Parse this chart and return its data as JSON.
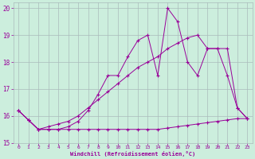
{
  "xlabel": "Windchill (Refroidissement éolien,°C)",
  "bg_color": "#cceedd",
  "grid_color": "#aabbbb",
  "line_color": "#990099",
  "xlim": [
    -0.5,
    23.5
  ],
  "ylim": [
    15.0,
    20.2
  ],
  "yticks": [
    15,
    16,
    17,
    18,
    19,
    20
  ],
  "xticks": [
    0,
    1,
    2,
    3,
    4,
    5,
    6,
    7,
    8,
    9,
    10,
    11,
    12,
    13,
    14,
    15,
    16,
    17,
    18,
    19,
    20,
    21,
    22,
    23
  ],
  "series1_x": [
    0,
    1,
    2,
    3,
    4,
    5,
    6,
    7,
    8,
    9,
    10,
    11,
    12,
    13,
    14,
    15,
    16,
    17,
    18,
    19,
    20,
    21,
    22,
    23
  ],
  "series1_y": [
    16.2,
    15.85,
    15.5,
    15.5,
    15.5,
    15.5,
    15.5,
    15.5,
    15.5,
    15.5,
    15.5,
    15.5,
    15.5,
    15.5,
    15.5,
    15.55,
    15.6,
    15.65,
    15.7,
    15.75,
    15.8,
    15.85,
    15.9,
    15.9
  ],
  "series2_x": [
    0,
    1,
    2,
    3,
    4,
    5,
    6,
    7,
    8,
    9,
    10,
    11,
    12,
    13,
    14,
    15,
    16,
    17,
    18,
    19,
    20,
    21,
    22,
    23
  ],
  "series2_y": [
    16.2,
    15.85,
    15.5,
    15.5,
    15.5,
    15.6,
    15.8,
    16.2,
    16.8,
    17.5,
    17.5,
    18.2,
    18.8,
    19.0,
    17.5,
    20.0,
    19.5,
    18.0,
    17.5,
    18.5,
    18.5,
    18.5,
    16.3,
    15.9
  ],
  "series3_x": [
    0,
    1,
    2,
    3,
    4,
    5,
    6,
    7,
    8,
    9,
    10,
    11,
    12,
    13,
    14,
    15,
    16,
    17,
    18,
    19,
    20,
    21,
    22,
    23
  ],
  "series3_y": [
    16.2,
    15.85,
    15.5,
    15.6,
    15.7,
    15.8,
    16.0,
    16.3,
    16.6,
    16.9,
    17.2,
    17.5,
    17.8,
    18.0,
    18.2,
    18.5,
    18.7,
    18.9,
    19.0,
    18.5,
    18.5,
    17.5,
    16.3,
    15.9
  ]
}
